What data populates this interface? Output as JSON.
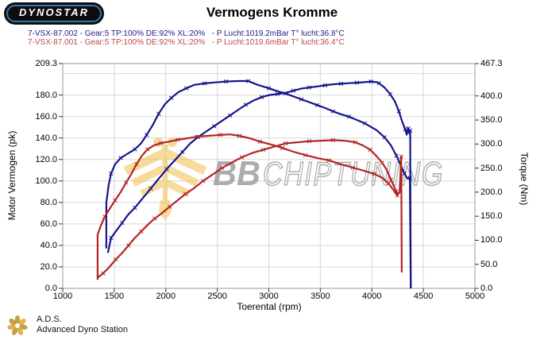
{
  "header": {
    "logo_text": "DYNOSTAR",
    "title": "Vermogens Kromme"
  },
  "legend": {
    "runs": [
      {
        "label": "7-VSX-87.002 - Gear:5 TP:100% DE:92% XL:20%   - P Lucht:1019.2mBar T° lucht:36.8°C",
        "color": "#1c1c8a"
      },
      {
        "label": "7-VSX-87.001 - Gear:5 TP:100% DE:92% XL:20%   - P Lucht:1019.6mBar T° lucht:36.4°C",
        "color": "#c04848"
      }
    ]
  },
  "axes": {
    "left_label": "Motor Vermogen (pk)",
    "right_label": "Torque (Nm)",
    "bottom_label": "Toerental (rpm)",
    "left_ticks": [
      {
        "value": 209.3,
        "label": "209.3"
      },
      {
        "value": 180,
        "label": "180.0"
      },
      {
        "value": 160,
        "label": "160.0"
      },
      {
        "value": 140,
        "label": "140.0"
      },
      {
        "value": 120,
        "label": "120.0"
      },
      {
        "value": 100,
        "label": "100.0"
      },
      {
        "value": 80,
        "label": "80.0"
      },
      {
        "value": 60,
        "label": "60.0"
      },
      {
        "value": 40,
        "label": "40.0"
      },
      {
        "value": 20,
        "label": "20.0"
      },
      {
        "value": 0,
        "label": "0.0"
      }
    ],
    "right_ticks": [
      {
        "value": 467.3,
        "label": "467.3"
      },
      {
        "value": 400,
        "label": "400.0"
      },
      {
        "value": 350,
        "label": "350.0"
      },
      {
        "value": 300,
        "label": "300.0"
      },
      {
        "value": 250,
        "label": "250.0"
      },
      {
        "value": 200,
        "label": "200.0"
      },
      {
        "value": 150,
        "label": "150.0"
      },
      {
        "value": 100,
        "label": "100.0"
      },
      {
        "value": 50,
        "label": "50.0"
      },
      {
        "value": 0,
        "label": "0.0"
      }
    ],
    "bottom_ticks": [
      {
        "value": 1000,
        "label": "1000"
      },
      {
        "value": 1500,
        "label": "1500"
      },
      {
        "value": 2000,
        "label": "2000"
      },
      {
        "value": 2500,
        "label": "2500"
      },
      {
        "value": 3000,
        "label": "3000"
      },
      {
        "value": 3500,
        "label": "3500"
      },
      {
        "value": 4000,
        "label": "4000"
      },
      {
        "value": 4500,
        "label": "4500"
      },
      {
        "value": 5000,
        "label": "5000"
      }
    ]
  },
  "watermark": {
    "bb": "BB",
    "rest": "CHIPTUNING",
    "color": "#9b9b9b",
    "emblem_color": "#f1be4b"
  },
  "footer": {
    "abbr": "A.D.S.",
    "name": "Advanced Dyno Station"
  },
  "chart_data": {
    "type": "line",
    "title": "Vermogens Kromme",
    "xlabel": "Toerental (rpm)",
    "ylabel_left": "Motor Vermogen (pk)",
    "ylabel_right": "Torque (Nm)",
    "x_range": [
      1000,
      5000
    ],
    "left_range": [
      0,
      209.3
    ],
    "right_range": [
      0,
      467.3
    ],
    "grid": {
      "x_step": 500,
      "left_step": 20,
      "color": "#d8d8d8"
    },
    "series": [
      {
        "name": "power-run-002",
        "unit": "pk",
        "axis": "left",
        "color": "#14148c",
        "markers": true,
        "points": [
          [
            1438,
            33
          ],
          [
            1469,
            47
          ],
          [
            1515,
            53
          ],
          [
            1577,
            61
          ],
          [
            1638,
            69
          ],
          [
            1700,
            75
          ],
          [
            1777,
            84
          ],
          [
            1854,
            93
          ],
          [
            1931,
            102
          ],
          [
            2008,
            111
          ],
          [
            2085,
            119
          ],
          [
            2162,
            127
          ],
          [
            2238,
            135
          ],
          [
            2315,
            141
          ],
          [
            2392,
            146
          ],
          [
            2469,
            151
          ],
          [
            2546,
            156
          ],
          [
            2623,
            161
          ],
          [
            2700,
            166
          ],
          [
            2777,
            171
          ],
          [
            2854,
            175
          ],
          [
            2931,
            178
          ],
          [
            3008,
            180
          ],
          [
            3085,
            181
          ],
          [
            3162,
            182
          ],
          [
            3238,
            184
          ],
          [
            3315,
            186
          ],
          [
            3392,
            187
          ],
          [
            3469,
            188
          ],
          [
            3546,
            189
          ],
          [
            3623,
            190
          ],
          [
            3700,
            190.5
          ],
          [
            3777,
            191
          ],
          [
            3854,
            191.5
          ],
          [
            3931,
            192
          ],
          [
            3992,
            192.5
          ],
          [
            4046,
            192
          ],
          [
            4069,
            191
          ],
          [
            4123,
            187
          ],
          [
            4177,
            181
          ],
          [
            4223,
            174
          ],
          [
            4262,
            165
          ],
          [
            4292,
            156
          ],
          [
            4323,
            148
          ],
          [
            4338,
            143
          ],
          [
            4354,
            149
          ],
          [
            4365,
            144
          ],
          [
            4372,
            147
          ],
          [
            4377,
            0
          ]
        ]
      },
      {
        "name": "torque-run-002",
        "unit": "Nm",
        "axis": "right",
        "color": "#14148c",
        "markers": true,
        "points": [
          [
            1423,
            83
          ],
          [
            1423,
            178
          ],
          [
            1446,
            216
          ],
          [
            1469,
            239
          ],
          [
            1508,
            258
          ],
          [
            1562,
            271
          ],
          [
            1623,
            279
          ],
          [
            1700,
            289
          ],
          [
            1762,
            302
          ],
          [
            1815,
            319
          ],
          [
            1869,
            338
          ],
          [
            1931,
            363
          ],
          [
            1992,
            383
          ],
          [
            2054,
            396
          ],
          [
            2123,
            408
          ],
          [
            2200,
            416
          ],
          [
            2277,
            423
          ],
          [
            2377,
            426
          ],
          [
            2469,
            428
          ],
          [
            2585,
            430
          ],
          [
            2700,
            431
          ],
          [
            2800,
            431
          ],
          [
            2892,
            423
          ],
          [
            3000,
            416
          ],
          [
            3080,
            410
          ],
          [
            3162,
            405
          ],
          [
            3238,
            399
          ],
          [
            3315,
            393
          ],
          [
            3392,
            387
          ],
          [
            3469,
            381
          ],
          [
            3546,
            375
          ],
          [
            3623,
            368
          ],
          [
            3700,
            362
          ],
          [
            3777,
            357
          ],
          [
            3854,
            350
          ],
          [
            3931,
            343
          ],
          [
            4046,
            329
          ],
          [
            4123,
            314
          ],
          [
            4185,
            297
          ],
          [
            4238,
            276
          ],
          [
            4277,
            258
          ],
          [
            4315,
            239
          ],
          [
            4346,
            228
          ],
          [
            4369,
            230
          ],
          [
            4377,
            0
          ]
        ]
      },
      {
        "name": "power-run-001",
        "unit": "pk",
        "axis": "left",
        "color": "#b22424",
        "markers": true,
        "points": [
          [
            1338,
            10
          ],
          [
            1392,
            14
          ],
          [
            1454,
            20
          ],
          [
            1515,
            27
          ],
          [
            1577,
            33
          ],
          [
            1638,
            40
          ],
          [
            1700,
            47
          ],
          [
            1762,
            53
          ],
          [
            1823,
            59
          ],
          [
            1892,
            65
          ],
          [
            1962,
            70
          ],
          [
            2038,
            76
          ],
          [
            2115,
            82
          ],
          [
            2192,
            88
          ],
          [
            2269,
            93
          ],
          [
            2362,
            100
          ],
          [
            2454,
            106
          ],
          [
            2546,
            112
          ],
          [
            2638,
            117
          ],
          [
            2738,
            122
          ],
          [
            2838,
            126
          ],
          [
            2946,
            129
          ],
          [
            3054,
            132
          ],
          [
            3162,
            135
          ],
          [
            3277,
            136
          ],
          [
            3392,
            137
          ],
          [
            3508,
            137.5
          ],
          [
            3623,
            138
          ],
          [
            3738,
            137.5
          ],
          [
            3838,
            136
          ],
          [
            3915,
            133
          ],
          [
            3985,
            129
          ],
          [
            4046,
            123
          ],
          [
            4100,
            117
          ],
          [
            4146,
            110
          ],
          [
            4185,
            101
          ],
          [
            4215,
            95
          ],
          [
            4238,
            90
          ],
          [
            4254,
            88
          ]
        ]
      },
      {
        "name": "torque-run-001",
        "unit": "Nm",
        "axis": "right",
        "color": "#b22424",
        "markers": true,
        "points": [
          [
            1338,
            18
          ],
          [
            1338,
            112
          ],
          [
            1369,
            130
          ],
          [
            1408,
            149
          ],
          [
            1454,
            165
          ],
          [
            1508,
            183
          ],
          [
            1562,
            200
          ],
          [
            1615,
            220
          ],
          [
            1669,
            239
          ],
          [
            1715,
            258
          ],
          [
            1769,
            276
          ],
          [
            1823,
            289
          ],
          [
            1885,
            297
          ],
          [
            1954,
            302
          ],
          [
            2031,
            305
          ],
          [
            2115,
            309
          ],
          [
            2208,
            312
          ],
          [
            2300,
            315
          ],
          [
            2408,
            317
          ],
          [
            2531,
            319
          ],
          [
            2623,
            320
          ],
          [
            2715,
            317
          ],
          [
            2815,
            312
          ],
          [
            2915,
            305
          ],
          [
            3023,
            299
          ],
          [
            3131,
            292
          ],
          [
            3238,
            284
          ],
          [
            3354,
            277
          ],
          [
            3469,
            271
          ],
          [
            3585,
            266
          ],
          [
            3700,
            258
          ],
          [
            3815,
            251
          ],
          [
            3931,
            244
          ],
          [
            4023,
            238
          ],
          [
            4100,
            230
          ],
          [
            4162,
            218
          ],
          [
            4208,
            205
          ],
          [
            4246,
            193
          ],
          [
            4269,
            200
          ],
          [
            4285,
            274
          ],
          [
            4290,
            33
          ]
        ]
      }
    ]
  }
}
